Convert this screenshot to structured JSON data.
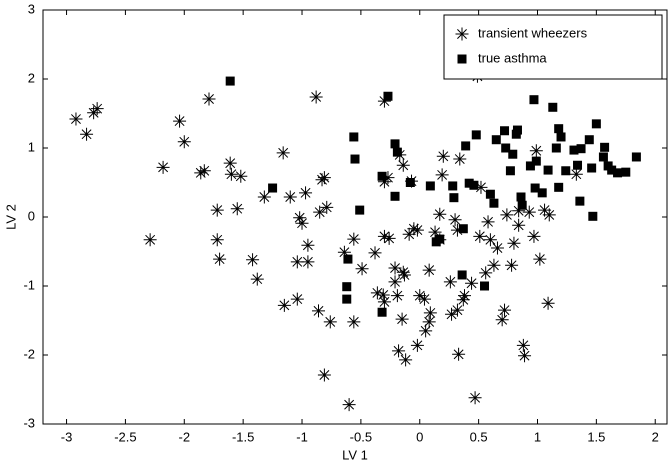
{
  "chart_data": {
    "type": "scatter",
    "xlabel": "LV 1",
    "ylabel": "LV 2",
    "xlim": [
      -3.2,
      2.1
    ],
    "ylim": [
      -3,
      3
    ],
    "xticks": [
      -3,
      -2.5,
      -2,
      -1.5,
      -1,
      -0.5,
      0,
      0.5,
      1,
      1.5,
      2
    ],
    "yticks": [
      -3,
      -2,
      -1,
      0,
      1,
      2,
      3
    ],
    "legend": "upper right",
    "grid": false,
    "series": [
      {
        "name": "transient wheezers",
        "marker": "asterisk",
        "color": "#000000",
        "x": [
          -2.92,
          -2.83,
          -2.77,
          -2.74,
          -2.29,
          -2.18,
          -2.04,
          -2.0,
          -1.86,
          -1.83,
          -1.79,
          -1.72,
          -1.72,
          -1.7,
          -1.61,
          -1.6,
          -1.55,
          -1.52,
          -1.42,
          -1.38,
          -1.32,
          -1.16,
          -1.15,
          -1.1,
          -1.04,
          -1.04,
          -1.02,
          -1.0,
          -0.97,
          -0.95,
          -0.95,
          -0.88,
          -0.85,
          -0.83,
          -0.81,
          -0.86,
          -0.81,
          -0.79,
          -0.76,
          -0.6,
          -0.64,
          -0.56,
          -0.56,
          -0.49,
          -0.38,
          -0.36,
          -0.3,
          -0.31,
          -0.3,
          -0.3,
          -0.26,
          -0.3,
          -0.27,
          -0.21,
          -0.21,
          -0.19,
          -0.18,
          -0.15,
          -0.17,
          -0.14,
          -0.14,
          -0.12,
          -0.13,
          -0.09,
          -0.07,
          -0.05,
          -0.02,
          -0.02,
          0.0,
          0.04,
          0.05,
          0.08,
          0.08,
          0.09,
          0.13,
          0.17,
          0.17,
          0.19,
          0.2,
          0.26,
          0.27,
          0.3,
          0.32,
          0.34,
          0.33,
          0.32,
          0.37,
          0.38,
          0.44,
          0.47,
          0.49,
          0.52,
          0.51,
          0.56,
          0.58,
          0.6,
          0.63,
          0.66,
          0.7,
          0.72,
          0.74,
          0.78,
          0.8,
          0.84,
          0.84,
          0.88,
          0.89,
          0.93,
          0.97,
          0.99,
          1.02,
          1.06,
          1.09,
          1.1,
          1.33
        ],
        "y": [
          1.42,
          1.2,
          1.51,
          1.57,
          -0.33,
          0.72,
          1.39,
          1.09,
          0.64,
          0.67,
          1.71,
          0.1,
          -0.33,
          -0.61,
          0.78,
          0.62,
          0.12,
          0.59,
          -0.62,
          -0.9,
          0.29,
          0.93,
          -1.28,
          0.29,
          -0.65,
          -1.19,
          -0.01,
          -0.09,
          0.35,
          -0.65,
          -0.41,
          1.74,
          0.07,
          0.54,
          0.57,
          -1.36,
          -2.29,
          0.14,
          -1.52,
          -2.72,
          -0.51,
          -0.32,
          -1.52,
          -0.75,
          -0.52,
          -1.1,
          1.68,
          -1.13,
          -1.23,
          -0.28,
          -0.31,
          0.51,
          0.57,
          -0.74,
          -0.94,
          -1.14,
          -1.94,
          -1.48,
          0.9,
          0.75,
          -0.8,
          -2.07,
          -0.84,
          -0.25,
          0.52,
          -0.17,
          -0.19,
          -1.86,
          -1.14,
          -1.19,
          -1.65,
          -1.52,
          -0.77,
          -1.39,
          -0.22,
          0.04,
          -0.33,
          0.61,
          0.88,
          -0.94,
          -1.41,
          -0.04,
          -0.19,
          0.84,
          -1.99,
          -1.35,
          -1.2,
          -1.14,
          -0.96,
          -2.62,
          2.04,
          0.43,
          -0.28,
          -0.81,
          -0.07,
          -0.33,
          -0.7,
          -0.45,
          -1.49,
          -1.35,
          0.03,
          -0.7,
          -0.38,
          0.09,
          -0.12,
          -1.86,
          -2.01,
          0.07,
          -0.28,
          0.96,
          -0.61,
          0.1,
          -1.25,
          0.03,
          0.62
        ]
      },
      {
        "name": "true asthma",
        "marker": "square",
        "color": "#000000",
        "x": [
          -1.61,
          -1.25,
          -0.62,
          -0.62,
          -0.61,
          -0.56,
          -0.55,
          -0.51,
          -0.32,
          -0.32,
          -0.27,
          -0.21,
          -0.19,
          -0.21,
          -0.08,
          0.09,
          0.14,
          0.17,
          0.28,
          0.29,
          0.36,
          0.37,
          0.39,
          0.42,
          0.46,
          0.48,
          0.55,
          0.6,
          0.63,
          0.65,
          0.72,
          0.73,
          0.77,
          0.82,
          0.79,
          0.83,
          0.86,
          0.87,
          0.94,
          0.97,
          0.98,
          0.99,
          1.04,
          1.09,
          1.13,
          1.16,
          1.18,
          1.2,
          1.18,
          1.24,
          1.31,
          1.34,
          1.36,
          1.37,
          1.44,
          1.46,
          1.47,
          1.5,
          1.57,
          1.56,
          1.6,
          1.63,
          1.68,
          1.75,
          1.84
        ],
        "y": [
          1.97,
          0.42,
          -1.01,
          -1.19,
          -0.61,
          1.16,
          0.84,
          0.1,
          -1.38,
          0.59,
          1.75,
          1.06,
          0.94,
          0.3,
          0.5,
          0.45,
          -0.36,
          -0.32,
          0.45,
          0.28,
          -0.84,
          -0.17,
          1.03,
          0.49,
          0.46,
          1.19,
          -1.0,
          0.33,
          0.2,
          1.12,
          1.25,
          1.0,
          0.67,
          1.2,
          0.91,
          1.26,
          0.29,
          0.17,
          0.74,
          1.7,
          0.42,
          0.81,
          0.35,
          0.68,
          1.59,
          1.0,
          1.28,
          1.16,
          0.43,
          0.67,
          0.97,
          0.75,
          0.23,
          0.99,
          1.12,
          0.71,
          0.01,
          1.35,
          1.01,
          0.87,
          0.74,
          0.68,
          0.64,
          0.65,
          0.87
        ]
      }
    ]
  }
}
